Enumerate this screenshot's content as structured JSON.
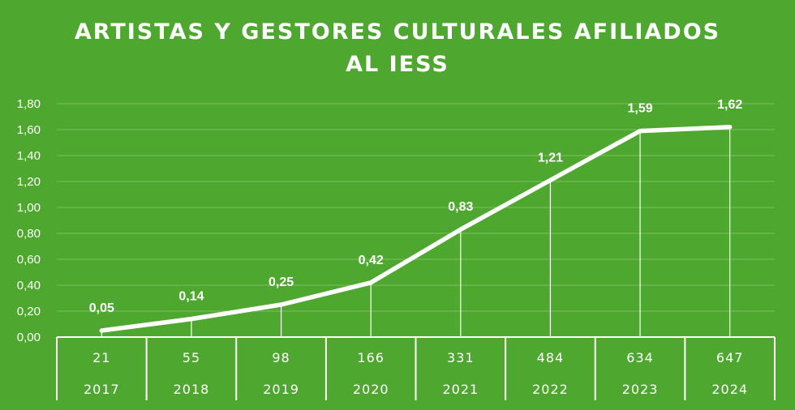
{
  "chart_data": {
    "type": "line",
    "title_lines": [
      "ARTISTAS Y GESTORES CULTURALES AFILIADOS",
      "AL IESS"
    ],
    "categories": [
      "2017",
      "2018",
      "2019",
      "2020",
      "2021",
      "2022",
      "2023",
      "2024"
    ],
    "values": [
      0.05,
      0.14,
      0.25,
      0.42,
      0.83,
      1.21,
      1.59,
      1.62
    ],
    "data_labels": [
      "0,05",
      "0,14",
      "0,25",
      "0,42",
      "0,83",
      "1,21",
      "1,59",
      "1,62"
    ],
    "table_row": [
      "21",
      "55",
      "98",
      "166",
      "331",
      "484",
      "634",
      "647"
    ],
    "y_ticks": [
      "0,00",
      "0,20",
      "0,40",
      "0,60",
      "0,80",
      "1,00",
      "1,20",
      "1,40",
      "1,60",
      "1,80"
    ],
    "ylim": [
      0,
      1.8
    ],
    "grid": true,
    "legend": "none",
    "colors": {
      "background": "#4ea72e",
      "line": "#ffffff",
      "grid": "#7cc160"
    }
  }
}
